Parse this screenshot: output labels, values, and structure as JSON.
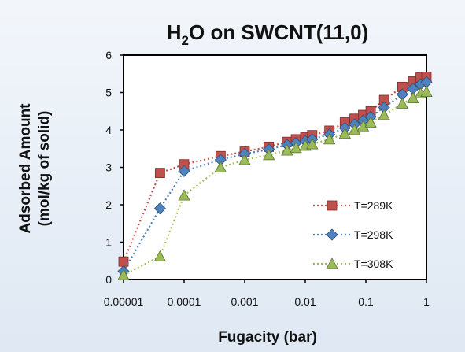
{
  "chart_data": {
    "type": "scatter",
    "title_parts": {
      "pre": "H",
      "sub": "2",
      "post": "O on SWCNT(11,0)"
    },
    "xlabel": "Fugacity (bar)",
    "ylabel": [
      "Adsorbed Amount",
      "(mol/kg of solid)"
    ],
    "x_scale": "log",
    "xlim": [
      1e-05,
      1
    ],
    "ylim": [
      0,
      6
    ],
    "x_ticks": [
      {
        "value": 1e-05,
        "label": "0.00001"
      },
      {
        "value": 0.0001,
        "label": "0.0001"
      },
      {
        "value": 0.001,
        "label": "0.001"
      },
      {
        "value": 0.01,
        "label": "0.01"
      },
      {
        "value": 0.1,
        "label": "0.1"
      },
      {
        "value": 1,
        "label": "1"
      }
    ],
    "y_ticks": [
      {
        "value": 0,
        "label": "0"
      },
      {
        "value": 1,
        "label": "1"
      },
      {
        "value": 2,
        "label": "2"
      },
      {
        "value": 3,
        "label": "3"
      },
      {
        "value": 4,
        "label": "4"
      },
      {
        "value": 5,
        "label": "5"
      },
      {
        "value": 6,
        "label": "6"
      }
    ],
    "grid": false,
    "legend_position": "right",
    "series": [
      {
        "name": "T=289K",
        "color": "#c0504d",
        "marker": "square",
        "line_style": "dotted",
        "points": [
          [
            1e-05,
            0.48
          ],
          [
            4e-05,
            2.85
          ],
          [
            0.0001,
            3.08
          ],
          [
            0.0004,
            3.3
          ],
          [
            0.001,
            3.42
          ],
          [
            0.0025,
            3.55
          ],
          [
            0.005,
            3.68
          ],
          [
            0.007,
            3.75
          ],
          [
            0.01,
            3.8
          ],
          [
            0.013,
            3.86
          ],
          [
            0.025,
            3.98
          ],
          [
            0.045,
            4.2
          ],
          [
            0.065,
            4.3
          ],
          [
            0.09,
            4.4
          ],
          [
            0.12,
            4.5
          ],
          [
            0.2,
            4.8
          ],
          [
            0.4,
            5.15
          ],
          [
            0.6,
            5.3
          ],
          [
            0.8,
            5.4
          ],
          [
            1,
            5.42
          ]
        ]
      },
      {
        "name": "T=298K",
        "color": "#4f81bd",
        "marker": "diamond",
        "line_style": "dotted",
        "points": [
          [
            1e-05,
            0.22
          ],
          [
            4e-05,
            1.9
          ],
          [
            0.0001,
            2.9
          ],
          [
            0.0004,
            3.2
          ],
          [
            0.001,
            3.36
          ],
          [
            0.0025,
            3.48
          ],
          [
            0.005,
            3.6
          ],
          [
            0.007,
            3.65
          ],
          [
            0.01,
            3.7
          ],
          [
            0.013,
            3.75
          ],
          [
            0.025,
            3.88
          ],
          [
            0.045,
            4.05
          ],
          [
            0.065,
            4.15
          ],
          [
            0.09,
            4.25
          ],
          [
            0.12,
            4.35
          ],
          [
            0.2,
            4.6
          ],
          [
            0.4,
            4.95
          ],
          [
            0.6,
            5.1
          ],
          [
            0.8,
            5.22
          ],
          [
            1,
            5.28
          ]
        ]
      },
      {
        "name": "T=308K",
        "color": "#9bbb59",
        "marker": "triangle",
        "line_style": "dotted",
        "points": [
          [
            1e-05,
            0.12
          ],
          [
            4e-05,
            0.62
          ],
          [
            0.0001,
            2.25
          ],
          [
            0.0004,
            3.0
          ],
          [
            0.001,
            3.2
          ],
          [
            0.0025,
            3.33
          ],
          [
            0.005,
            3.45
          ],
          [
            0.007,
            3.52
          ],
          [
            0.01,
            3.58
          ],
          [
            0.013,
            3.62
          ],
          [
            0.025,
            3.75
          ],
          [
            0.045,
            3.9
          ],
          [
            0.065,
            4.0
          ],
          [
            0.09,
            4.1
          ],
          [
            0.12,
            4.2
          ],
          [
            0.2,
            4.4
          ],
          [
            0.4,
            4.7
          ],
          [
            0.6,
            4.85
          ],
          [
            0.8,
            4.98
          ],
          [
            1,
            5.02
          ]
        ]
      }
    ]
  }
}
